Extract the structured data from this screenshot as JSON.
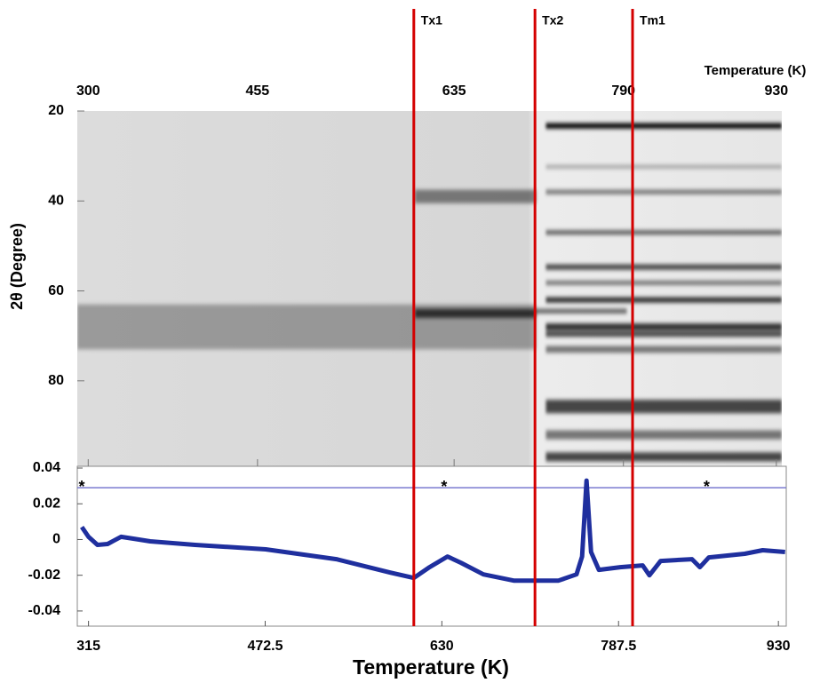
{
  "chart_data": [
    {
      "type": "heatmap",
      "x_label": "Temperature (K)",
      "y_label": "2θ (Degree)",
      "xlim": [
        290,
        935
      ],
      "xticks": [
        300,
        455,
        635,
        790,
        930
      ],
      "ylim": [
        20,
        99
      ],
      "yticks": [
        20,
        40,
        60,
        80
      ],
      "bands": [
        {
          "two_theta": 68,
          "t_start": 290,
          "t_end": 710,
          "width": 10,
          "intensity": 0.3
        },
        {
          "two_theta": 65,
          "t_start": 599,
          "t_end": 710,
          "width": 2,
          "intensity": 0.7
        },
        {
          "two_theta": 39,
          "t_start": 599,
          "t_end": 710,
          "width": 3,
          "intensity": 0.45
        },
        {
          "two_theta": 23.3,
          "t_start": 719,
          "t_end": 935,
          "width": 1.2,
          "intensity": 1
        },
        {
          "two_theta": 32.4,
          "t_start": 719,
          "t_end": 935,
          "width": 0.8,
          "intensity": 0.3
        },
        {
          "two_theta": 38,
          "t_start": 719,
          "t_end": 935,
          "width": 1,
          "intensity": 0.5
        },
        {
          "two_theta": 47,
          "t_start": 719,
          "t_end": 935,
          "width": 1,
          "intensity": 0.6
        },
        {
          "two_theta": 54.7,
          "t_start": 719,
          "t_end": 935,
          "width": 1.2,
          "intensity": 0.7
        },
        {
          "two_theta": 58.2,
          "t_start": 719,
          "t_end": 935,
          "width": 1,
          "intensity": 0.5
        },
        {
          "two_theta": 62,
          "t_start": 719,
          "t_end": 935,
          "width": 1.2,
          "intensity": 0.8
        },
        {
          "two_theta": 64.5,
          "t_start": 710,
          "t_end": 793,
          "width": 1,
          "intensity": 0.6
        },
        {
          "two_theta": 68,
          "t_start": 719,
          "t_end": 935,
          "width": 1.5,
          "intensity": 0.8
        },
        {
          "two_theta": 69.6,
          "t_start": 719,
          "t_end": 935,
          "width": 1.2,
          "intensity": 0.7
        },
        {
          "two_theta": 73,
          "t_start": 719,
          "t_end": 935,
          "width": 1.5,
          "intensity": 0.5
        },
        {
          "two_theta": 85.7,
          "t_start": 719,
          "t_end": 935,
          "width": 3,
          "intensity": 0.7
        },
        {
          "two_theta": 92,
          "t_start": 719,
          "t_end": 935,
          "width": 2,
          "intensity": 0.5
        },
        {
          "two_theta": 96.9,
          "t_start": 719,
          "t_end": 935,
          "width": 2,
          "intensity": 0.7
        }
      ]
    },
    {
      "type": "line",
      "x_label": "Temperature (K)",
      "color": "#1f2f9e",
      "xlim": [
        305,
        937
      ],
      "xticks": [
        315,
        472.5,
        630,
        787.5,
        930
      ],
      "ylim": [
        -0.0485,
        0.041
      ],
      "yticks": [
        0.04,
        0.02,
        0,
        -0.02,
        -0.04
      ],
      "x": [
        309,
        315,
        323,
        332,
        344,
        355,
        370,
        410,
        473,
        536,
        584,
        605,
        619,
        635,
        647,
        667,
        694,
        734,
        750,
        755,
        759,
        763,
        770,
        789,
        809,
        815,
        825,
        853,
        860,
        868,
        900,
        916,
        936
      ],
      "values": [
        0.007,
        0.0015,
        -0.003,
        -0.0025,
        0.0015,
        0.0005,
        -0.001,
        -0.003,
        -0.0055,
        -0.011,
        -0.0185,
        -0.0215,
        -0.0155,
        -0.0095,
        -0.013,
        -0.0195,
        -0.023,
        -0.023,
        -0.0195,
        -0.0095,
        0.033,
        -0.007,
        -0.017,
        -0.0155,
        -0.0145,
        -0.02,
        -0.012,
        -0.011,
        -0.0155,
        -0.01,
        -0.008,
        -0.006,
        -0.007
      ],
      "hline": 0.029,
      "hline_color": "#7a7ad0",
      "annotations": [
        {
          "text": "*",
          "x": 309,
          "y": 0.031
        },
        {
          "text": "*",
          "x": 632,
          "y": 0.031
        },
        {
          "text": "*",
          "x": 866,
          "y": 0.031
        }
      ]
    }
  ],
  "transitions": [
    {
      "label": "Tx1",
      "value": 605
    },
    {
      "label": "Tx2",
      "value": 713
    },
    {
      "label": "Tm1",
      "value": 800
    }
  ],
  "transition_color": "#d40000"
}
